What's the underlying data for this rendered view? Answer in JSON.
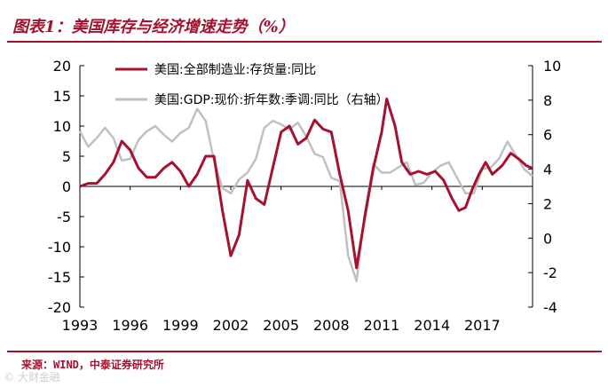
{
  "header": {
    "title": "图表1：美国库存与经济增速走势（%）"
  },
  "footer": {
    "source": "来源：WIND，中泰证券研究所",
    "watermark": "© 大财金融"
  },
  "colors": {
    "accent": "#a5122f",
    "series1": "#a5122f",
    "series2": "#c0c0c0"
  },
  "chart_data": {
    "type": "line",
    "title": "美国库存与经济增速走势（%）",
    "x_ticks": [
      "1993",
      "1996",
      "1999",
      "2002",
      "2005",
      "2008",
      "2011",
      "2014",
      "2017"
    ],
    "x_range": [
      1993,
      2020
    ],
    "y_left": {
      "range": [
        -20,
        20
      ],
      "ticks": [
        "20",
        "15",
        "10",
        "5",
        "0",
        "-5",
        "-10",
        "-15",
        "-20"
      ]
    },
    "y_right": {
      "range": [
        -4,
        10
      ],
      "ticks": [
        "10",
        "8",
        "6",
        "4",
        "2",
        "0",
        "-2",
        "-4"
      ]
    },
    "series": [
      {
        "name": "美国:全部制造业:存货量:同比",
        "axis": "left",
        "points": [
          [
            1993.0,
            0.0
          ],
          [
            1993.5,
            0.5
          ],
          [
            1994.0,
            0.5
          ],
          [
            1994.5,
            2.0
          ],
          [
            1995.0,
            4.0
          ],
          [
            1995.5,
            7.5
          ],
          [
            1996.0,
            6.0
          ],
          [
            1996.5,
            3.0
          ],
          [
            1997.0,
            1.5
          ],
          [
            1997.5,
            1.5
          ],
          [
            1998.0,
            3.0
          ],
          [
            1998.5,
            4.0
          ],
          [
            1999.0,
            2.5
          ],
          [
            1999.5,
            0.0
          ],
          [
            2000.0,
            2.0
          ],
          [
            2000.5,
            5.0
          ],
          [
            2001.0,
            5.0
          ],
          [
            2001.5,
            -4.0
          ],
          [
            2002.0,
            -11.5
          ],
          [
            2002.5,
            -8.0
          ],
          [
            2003.0,
            1.0
          ],
          [
            2003.5,
            -2.0
          ],
          [
            2004.0,
            -3.0
          ],
          [
            2004.5,
            3.0
          ],
          [
            2005.0,
            9.0
          ],
          [
            2005.5,
            10.0
          ],
          [
            2006.0,
            7.0
          ],
          [
            2006.5,
            8.0
          ],
          [
            2007.0,
            11.0
          ],
          [
            2007.5,
            9.5
          ],
          [
            2008.0,
            9.0
          ],
          [
            2008.5,
            2.0
          ],
          [
            2009.0,
            -4.0
          ],
          [
            2009.5,
            -13.5
          ],
          [
            2010.0,
            -5.0
          ],
          [
            2010.5,
            3.0
          ],
          [
            2011.0,
            9.0
          ],
          [
            2011.3,
            14.5
          ],
          [
            2011.8,
            10.0
          ],
          [
            2012.2,
            4.0
          ],
          [
            2012.7,
            2.0
          ],
          [
            2013.2,
            2.5
          ],
          [
            2013.7,
            2.0
          ],
          [
            2014.2,
            2.5
          ],
          [
            2014.7,
            1.0
          ],
          [
            2015.2,
            -2.0
          ],
          [
            2015.6,
            -4.0
          ],
          [
            2016.0,
            -3.5
          ],
          [
            2016.4,
            -0.5
          ],
          [
            2016.8,
            2.0
          ],
          [
            2017.2,
            4.0
          ],
          [
            2017.6,
            2.0
          ],
          [
            2018.2,
            3.5
          ],
          [
            2018.7,
            5.5
          ],
          [
            2019.2,
            4.5
          ],
          [
            2019.6,
            3.5
          ],
          [
            2020.0,
            3.0
          ]
        ]
      },
      {
        "name": "美国:GDP:现价:折年数:季调:同比（右轴）",
        "axis": "right",
        "points": [
          [
            1993.0,
            6.2
          ],
          [
            1993.5,
            5.3
          ],
          [
            1994.0,
            5.8
          ],
          [
            1994.5,
            6.4
          ],
          [
            1995.0,
            5.8
          ],
          [
            1995.5,
            4.5
          ],
          [
            1996.0,
            4.6
          ],
          [
            1996.5,
            5.7
          ],
          [
            1997.0,
            6.2
          ],
          [
            1997.5,
            6.5
          ],
          [
            1998.0,
            6.0
          ],
          [
            1998.5,
            5.6
          ],
          [
            1999.0,
            6.1
          ],
          [
            1999.5,
            6.4
          ],
          [
            2000.0,
            7.5
          ],
          [
            2000.5,
            6.8
          ],
          [
            2001.0,
            4.5
          ],
          [
            2001.5,
            2.9
          ],
          [
            2002.0,
            2.6
          ],
          [
            2002.5,
            3.4
          ],
          [
            2003.0,
            3.8
          ],
          [
            2003.5,
            4.6
          ],
          [
            2004.0,
            6.4
          ],
          [
            2004.5,
            6.8
          ],
          [
            2005.0,
            6.6
          ],
          [
            2005.5,
            6.3
          ],
          [
            2006.0,
            6.7
          ],
          [
            2006.5,
            5.9
          ],
          [
            2007.0,
            4.9
          ],
          [
            2007.5,
            4.7
          ],
          [
            2008.0,
            3.5
          ],
          [
            2008.5,
            3.3
          ],
          [
            2009.0,
            -1.0
          ],
          [
            2009.5,
            -2.5
          ],
          [
            2010.0,
            1.5
          ],
          [
            2010.5,
            4.3
          ],
          [
            2011.0,
            3.8
          ],
          [
            2011.5,
            3.8
          ],
          [
            2012.0,
            4.1
          ],
          [
            2012.5,
            4.4
          ],
          [
            2013.0,
            3.1
          ],
          [
            2013.5,
            3.2
          ],
          [
            2014.0,
            3.8
          ],
          [
            2014.5,
            4.2
          ],
          [
            2015.0,
            4.4
          ],
          [
            2015.5,
            3.5
          ],
          [
            2016.0,
            2.6
          ],
          [
            2016.5,
            2.6
          ],
          [
            2017.0,
            4.0
          ],
          [
            2017.5,
            4.1
          ],
          [
            2018.0,
            4.6
          ],
          [
            2018.5,
            5.6
          ],
          [
            2019.0,
            4.8
          ],
          [
            2019.5,
            4.0
          ],
          [
            2020.0,
            3.6
          ]
        ]
      }
    ]
  }
}
